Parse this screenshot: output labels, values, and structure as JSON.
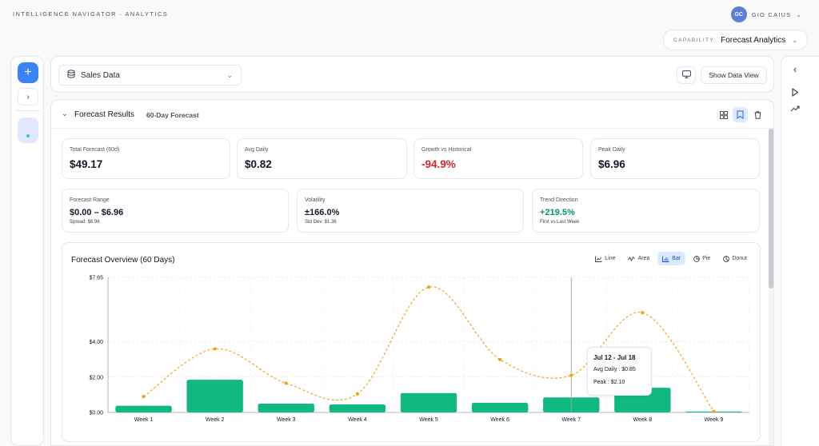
{
  "app": {
    "title": "INTELLIGENCE NAVIGATOR · ANALYTICS"
  },
  "user": {
    "initials": "GC",
    "name": "GIO CAIUS"
  },
  "capability": {
    "label": "CAPABILITY",
    "value": "Forecast Analytics"
  },
  "source": {
    "selected": "Sales Data",
    "show_data_label": "Show Data View"
  },
  "results": {
    "title": "Forecast Results",
    "subtitle": "60-Day Forecast",
    "metrics_top": [
      {
        "label": "Total Forecast (60d)",
        "value": "$49.17"
      },
      {
        "label": "Avg Daily",
        "value": "$0.82"
      },
      {
        "label": "Growth vs Historical",
        "value": "-94.9%"
      },
      {
        "label": "Peak Daily",
        "value": "$6.96"
      }
    ],
    "metrics_bottom": [
      {
        "label": "Forecast Range",
        "value": "$0.00 – $6.96",
        "sub": "Spread: $6.96"
      },
      {
        "label": "Volatility",
        "value": "±166.0%",
        "sub": "Std Dev: $1.36"
      },
      {
        "label": "Trend Direction",
        "value": "+219.5%",
        "sub": "First vs Last Week"
      }
    ]
  },
  "chart_types": [
    {
      "icon": "line-chart-icon",
      "label": "Line"
    },
    {
      "icon": "area-chart-icon",
      "label": "Area"
    },
    {
      "icon": "bar-chart-icon",
      "label": "Bar",
      "active": true
    },
    {
      "icon": "pie-chart-icon",
      "label": "Pie"
    },
    {
      "icon": "donut-chart-icon",
      "label": "Donut"
    }
  ],
  "tooltip": {
    "title": "Jul 12 - Jul 18",
    "avg_label": "Avg Daily : $0.85",
    "peak_label": "Peak : $2.10"
  },
  "chart_data": {
    "type": "bar",
    "title": "Forecast Overview (60 Days)",
    "categories": [
      "Week 1",
      "Week 2",
      "Week 3",
      "Week 4",
      "Week 5",
      "Week 6",
      "Week 7",
      "Week 8",
      "Week 9"
    ],
    "y_ticks": [
      "$0.00",
      "$2.00",
      "$4.00",
      "$7.65"
    ],
    "y_tick_values": [
      0,
      2,
      4,
      7.65
    ],
    "ylim": [
      0,
      7.65
    ],
    "grid": true,
    "bar_color": "#10b981",
    "line_color": "#f59e0b",
    "series": [
      {
        "values": [
          0.38,
          1.85,
          0.5,
          0.45,
          1.1,
          0.55,
          0.85,
          1.4,
          0.05
        ]
      },
      {
        "values": [
          0.9,
          3.6,
          1.65,
          1.05,
          7.1,
          3.0,
          2.1,
          5.65,
          0.05
        ]
      }
    ]
  }
}
